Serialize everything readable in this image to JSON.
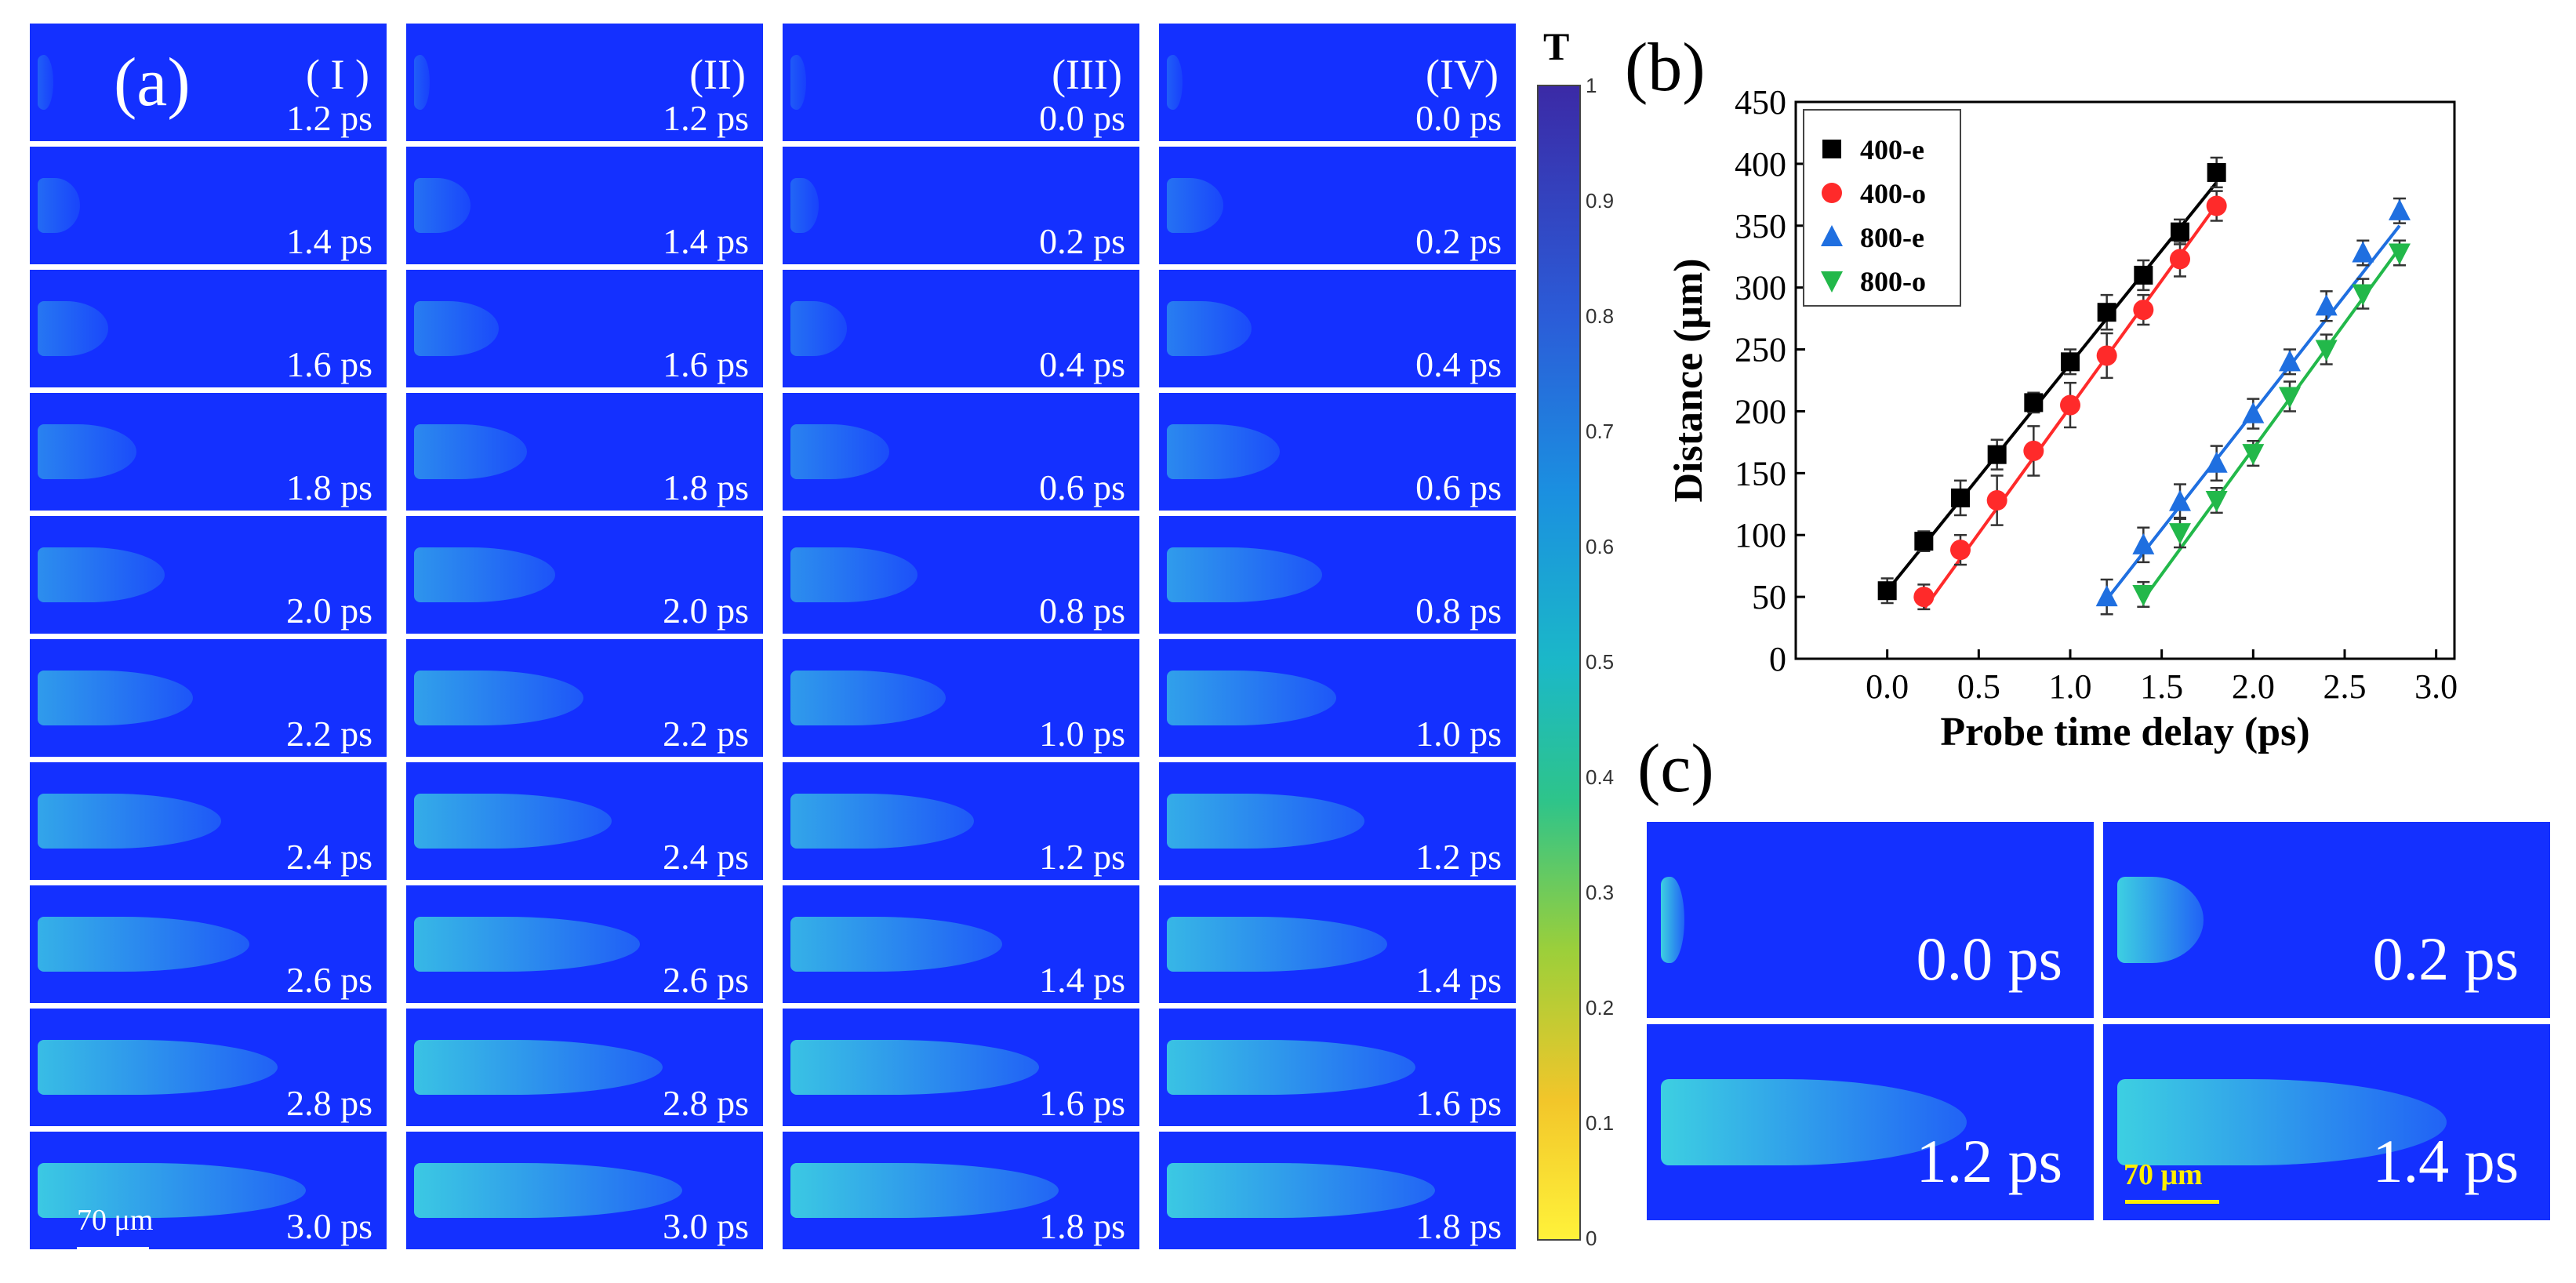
{
  "panel_a": {
    "label": "(a)",
    "columns": [
      {
        "id": "I",
        "header": "( I )",
        "times": [
          "1.2 ps",
          "1.4 ps",
          "1.6 ps",
          "1.8 ps",
          "2.0 ps",
          "2.2 ps",
          "2.4 ps",
          "2.6 ps",
          "2.8 ps",
          "3.0 ps"
        ],
        "brightness": [
          0.05,
          0.15,
          0.25,
          0.35,
          0.45,
          0.55,
          0.65,
          0.75,
          0.85,
          0.95
        ]
      },
      {
        "id": "II",
        "header": "(II)",
        "times": [
          "1.2 ps",
          "1.4 ps",
          "1.6 ps",
          "1.8 ps",
          "2.0 ps",
          "2.2 ps",
          "2.4 ps",
          "2.6 ps",
          "2.8 ps",
          "3.0 ps"
        ],
        "brightness": [
          0.05,
          0.2,
          0.3,
          0.4,
          0.5,
          0.6,
          0.7,
          0.8,
          0.88,
          0.95
        ]
      },
      {
        "id": "III",
        "header": "(III)",
        "times": [
          "0.0 ps",
          "0.2 ps",
          "0.4 ps",
          "0.6 ps",
          "0.8 ps",
          "1.0 ps",
          "1.2 ps",
          "1.4 ps",
          "1.6 ps",
          "1.8 ps"
        ],
        "brightness": [
          0.0,
          0.1,
          0.2,
          0.35,
          0.45,
          0.55,
          0.65,
          0.75,
          0.88,
          0.95
        ]
      },
      {
        "id": "IV",
        "header": "(IV)",
        "times": [
          "0.0 ps",
          "0.2 ps",
          "0.4 ps",
          "0.6 ps",
          "0.8 ps",
          "1.0 ps",
          "1.2 ps",
          "1.4 ps",
          "1.6 ps",
          "1.8 ps"
        ],
        "brightness": [
          0.05,
          0.2,
          0.3,
          0.4,
          0.55,
          0.6,
          0.7,
          0.78,
          0.88,
          0.95
        ]
      }
    ],
    "scalebar_label": "70 μm"
  },
  "colorbar": {
    "title": "T",
    "ticks": [
      "1",
      "0.9",
      "0.8",
      "0.7",
      "0.6",
      "0.5",
      "0.4",
      "0.3",
      "0.2",
      "0.1",
      "0"
    ]
  },
  "panel_b": {
    "label": "(b)"
  },
  "panel_c": {
    "label": "(c)",
    "frames": [
      "0.0 ps",
      "0.2 ps",
      "1.2 ps",
      "1.4 ps"
    ],
    "scalebar_label": "70 μm"
  },
  "colors": {
    "frame_bg": "#1430ff",
    "plume": "#3fd8e0",
    "scalebar_white": "#ffffff",
    "scalebar_yellow": "#ffee00"
  },
  "chart_data": {
    "type": "scatter",
    "xlabel": "Probe time delay (ps)",
    "ylabel": "Distance (μm)",
    "xlim": [
      -0.5,
      3.1
    ],
    "ylim": [
      0,
      450
    ],
    "xticks": [
      "0.0",
      "0.5",
      "1.0",
      "1.5",
      "2.0",
      "2.5",
      "3.0"
    ],
    "yticks": [
      "0",
      "50",
      "100",
      "150",
      "200",
      "250",
      "300",
      "350",
      "400",
      "450"
    ],
    "legend_position": "top-left",
    "series": [
      {
        "name": "400-e",
        "color": "#000000",
        "marker": "square",
        "x": [
          0.0,
          0.2,
          0.4,
          0.6,
          0.8,
          1.0,
          1.2,
          1.4,
          1.6,
          1.8
        ],
        "y": [
          55,
          95,
          130,
          165,
          207,
          240,
          280,
          310,
          345,
          393
        ],
        "err": [
          10,
          8,
          14,
          12,
          8,
          10,
          14,
          12,
          10,
          12
        ],
        "fit": [
          [
            0.0,
            55
          ],
          [
            1.8,
            385
          ]
        ]
      },
      {
        "name": "400-o",
        "color": "#ff2a2a",
        "marker": "circle",
        "x": [
          0.2,
          0.4,
          0.6,
          0.8,
          1.0,
          1.2,
          1.4,
          1.6,
          1.8
        ],
        "y": [
          50,
          88,
          128,
          168,
          205,
          245,
          282,
          323,
          366
        ],
        "err": [
          10,
          12,
          20,
          20,
          18,
          18,
          12,
          14,
          12
        ],
        "fit": [
          [
            0.2,
            40
          ],
          [
            1.8,
            367
          ]
        ]
      },
      {
        "name": "800-e",
        "color": "#1f6fe0",
        "marker": "triangle-up",
        "x": [
          1.2,
          1.4,
          1.6,
          1.8,
          2.0,
          2.2,
          2.4,
          2.6,
          2.8
        ],
        "y": [
          50,
          92,
          127,
          158,
          198,
          240,
          285,
          328,
          362
        ],
        "err": [
          14,
          14,
          14,
          14,
          12,
          10,
          12,
          10,
          10
        ],
        "fit": [
          [
            1.2,
            48
          ],
          [
            2.8,
            350
          ]
        ]
      },
      {
        "name": "800-o",
        "color": "#22b84a",
        "marker": "triangle-down",
        "x": [
          1.4,
          1.6,
          1.8,
          2.0,
          2.2,
          2.4,
          2.6,
          2.8
        ],
        "y": [
          52,
          102,
          128,
          166,
          212,
          250,
          295,
          328
        ],
        "err": [
          10,
          12,
          10,
          10,
          12,
          12,
          12,
          10
        ],
        "fit": [
          [
            1.4,
            48
          ],
          [
            2.8,
            332
          ]
        ]
      }
    ]
  }
}
